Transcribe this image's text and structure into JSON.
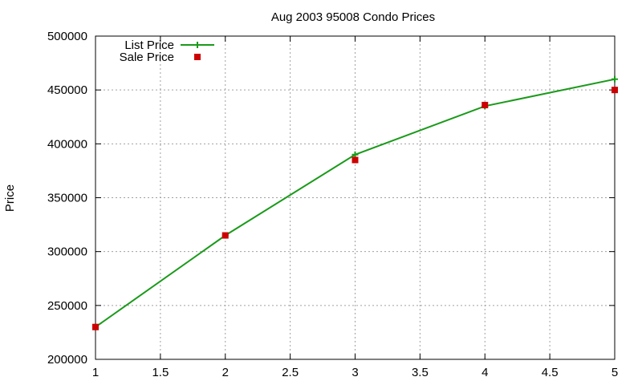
{
  "chart_data": {
    "type": "line",
    "title": "Aug 2003 95008 Condo Prices",
    "xlabel": "",
    "ylabel": "Price",
    "xlim": [
      1,
      5
    ],
    "ylim": [
      200000,
      500000
    ],
    "xticks": [
      "1",
      "1.5",
      "2",
      "2.5",
      "3",
      "3.5",
      "4",
      "4.5",
      "5"
    ],
    "yticks": [
      "200000",
      "250000",
      "300000",
      "350000",
      "400000",
      "450000",
      "500000"
    ],
    "grid": true,
    "legend_position": "top-left",
    "series": [
      {
        "name": "List Price",
        "style": "line+cross",
        "color": "#1a9a1a",
        "x": [
          1,
          2,
          3,
          4,
          5
        ],
        "y": [
          230000,
          315000,
          390000,
          435000,
          460000
        ]
      },
      {
        "name": "Sale Price",
        "style": "square-points",
        "color": "#cc0000",
        "x": [
          1,
          2,
          3,
          4,
          5
        ],
        "y": [
          230000,
          315000,
          385000,
          436000,
          450000
        ]
      }
    ]
  }
}
